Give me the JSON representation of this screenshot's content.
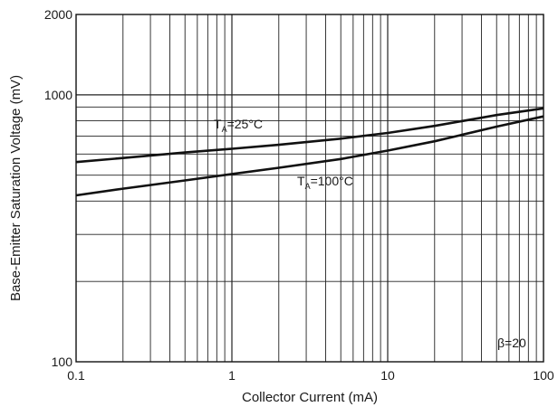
{
  "chart_data": {
    "type": "line",
    "title": "",
    "xlabel": "Collector Current (mA)",
    "ylabel": "Base-Emitter Saturation Voltage (mV)",
    "xscale": "log",
    "yscale": "log",
    "xlim": [
      0.1,
      100
    ],
    "ylim": [
      100,
      2000
    ],
    "grid": true,
    "x_tick_labels": [
      "0.1",
      "1",
      "10",
      "100"
    ],
    "y_tick_labels": [
      "100",
      "1000",
      "2000"
    ],
    "series": [
      {
        "label_main": "T",
        "label_sub": "A",
        "label_rest": "=25°C",
        "x": [
          0.1,
          0.2,
          0.5,
          1,
          2,
          5,
          10,
          20,
          50,
          100
        ],
        "y": [
          560,
          580,
          608,
          628,
          650,
          685,
          720,
          765,
          840,
          890
        ]
      },
      {
        "label_main": "T",
        "label_sub": "A",
        "label_rest": "=100°C",
        "x": [
          0.1,
          0.2,
          0.5,
          1,
          2,
          5,
          10,
          20,
          50,
          100
        ],
        "y": [
          420,
          445,
          478,
          505,
          533,
          575,
          618,
          670,
          760,
          830
        ]
      }
    ],
    "annotation": "β=20",
    "colors": {
      "line": "#111111",
      "grid": "#222222",
      "frame": "#111111"
    }
  }
}
